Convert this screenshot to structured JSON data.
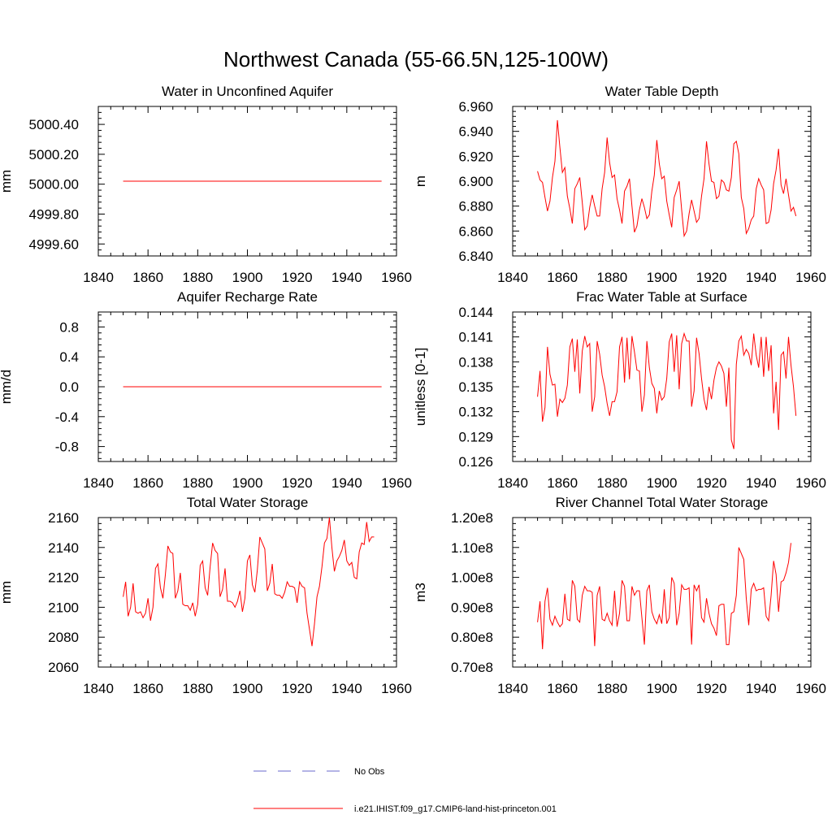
{
  "figure": {
    "title": "Northwest Canada (55-66.5N,125-100W)"
  },
  "legend": {
    "items": [
      {
        "label": "No Obs",
        "color": "#6a6acd",
        "style": "dashed"
      },
      {
        "label": "i.e21.IHIST.f09_g17.CMIP6-land-hist-princeton.001",
        "color": "#ff0000",
        "style": "solid"
      }
    ]
  },
  "chart_data": [
    {
      "type": "line",
      "title": "Water in Unconfined Aquifer",
      "ylabel": "mm",
      "xlabel": "",
      "xlim": [
        1840,
        1960
      ],
      "ylim": [
        4999.52,
        5000.52
      ],
      "xticks": [
        "1840",
        "1860",
        "1880",
        "1900",
        "1920",
        "1940",
        "1960"
      ],
      "yticks": [
        4999.6,
        4999.8,
        5000.0,
        5000.2,
        5000.4
      ],
      "ytick_labels": [
        "4999.60",
        "4999.80",
        "5000.00",
        "5000.20",
        "5000.40"
      ],
      "x_start": 1850,
      "x_step": 1,
      "series": [
        {
          "color": "#ff0000",
          "values": [
            5000.02,
            5000.02,
            5000.02,
            5000.02,
            5000.02,
            5000.02,
            5000.02,
            5000.02,
            5000.02,
            5000.02,
            5000.02,
            5000.02,
            5000.02,
            5000.02,
            5000.02,
            5000.02,
            5000.02,
            5000.02,
            5000.02,
            5000.02,
            5000.02,
            5000.02,
            5000.02,
            5000.02,
            5000.02,
            5000.02,
            5000.02,
            5000.02,
            5000.02,
            5000.02,
            5000.02,
            5000.02,
            5000.02,
            5000.02,
            5000.02,
            5000.02,
            5000.02,
            5000.02,
            5000.02,
            5000.02,
            5000.02,
            5000.02,
            5000.02,
            5000.02,
            5000.02,
            5000.02,
            5000.02,
            5000.02,
            5000.02,
            5000.02,
            5000.02,
            5000.02,
            5000.02,
            5000.02,
            5000.02,
            5000.02,
            5000.02,
            5000.02,
            5000.02,
            5000.02,
            5000.02,
            5000.02,
            5000.02,
            5000.02,
            5000.02,
            5000.02,
            5000.02,
            5000.02,
            5000.02,
            5000.02,
            5000.02,
            5000.02,
            5000.02,
            5000.02,
            5000.02,
            5000.02,
            5000.02,
            5000.02,
            5000.02,
            5000.02,
            5000.02,
            5000.02,
            5000.02,
            5000.02,
            5000.02,
            5000.02,
            5000.02,
            5000.02,
            5000.02,
            5000.02,
            5000.02,
            5000.02,
            5000.02,
            5000.02,
            5000.02,
            5000.02,
            5000.02,
            5000.02,
            5000.02,
            5000.02,
            5000.02,
            5000.02,
            5000.02,
            5000.02,
            5000.02
          ]
        }
      ]
    },
    {
      "type": "line",
      "title": "Water Table Depth",
      "ylabel": "m",
      "xlabel": "",
      "xlim": [
        1840,
        1960
      ],
      "ylim": [
        6.84,
        6.96
      ],
      "xticks": [
        "1840",
        "1860",
        "1880",
        "1900",
        "1920",
        "1940",
        "1960"
      ],
      "yticks": [
        6.84,
        6.86,
        6.88,
        6.9,
        6.92,
        6.94,
        6.96
      ],
      "ytick_labels": [
        "6.840",
        "6.860",
        "6.880",
        "6.900",
        "6.920",
        "6.940",
        "6.960"
      ],
      "x_start": 1850,
      "x_step": 1,
      "series": [
        {
          "color": "#ff0000",
          "values": [
            6.908,
            6.901,
            6.899,
            6.887,
            6.876,
            6.884,
            6.903,
            6.916,
            6.949,
            6.927,
            6.907,
            6.911,
            6.888,
            6.878,
            6.866,
            6.894,
            6.898,
            6.903,
            6.883,
            6.861,
            6.864,
            6.879,
            6.889,
            6.88,
            6.872,
            6.872,
            6.894,
            6.907,
            6.935,
            6.915,
            6.903,
            6.905,
            6.886,
            6.877,
            6.866,
            6.892,
            6.896,
            6.902,
            6.88,
            6.859,
            6.864,
            6.877,
            6.886,
            6.879,
            6.87,
            6.873,
            6.892,
            6.905,
            6.933,
            6.914,
            6.902,
            6.904,
            6.884,
            6.873,
            6.863,
            6.887,
            6.893,
            6.9,
            6.877,
            6.856,
            6.86,
            6.874,
            6.885,
            6.876,
            6.867,
            6.87,
            6.888,
            6.902,
            6.932,
            6.914,
            6.9,
            6.899,
            6.886,
            6.888,
            6.901,
            6.899,
            6.893,
            6.892,
            6.903,
            6.93,
            6.932,
            6.922,
            6.887,
            6.878,
            6.858,
            6.862,
            6.869,
            6.872,
            6.894,
            6.902,
            6.897,
            6.893,
            6.866,
            6.867,
            6.877,
            6.898,
            6.909,
            6.926,
            6.897,
            6.89,
            6.902,
            6.889,
            6.876,
            6.879,
            6.872
          ]
        }
      ]
    },
    {
      "type": "line",
      "title": "Aquifer Recharge Rate",
      "ylabel": "mm/d",
      "xlabel": "",
      "xlim": [
        1840,
        1960
      ],
      "ylim": [
        -1.0,
        1.0
      ],
      "xticks": [
        "1840",
        "1860",
        "1880",
        "1900",
        "1920",
        "1940",
        "1960"
      ],
      "yticks": [
        -0.8,
        -0.4,
        0.0,
        0.4,
        0.8
      ],
      "ytick_labels": [
        "-0.8",
        "-0.4",
        "0.0",
        "0.4",
        "0.8"
      ],
      "x_start": 1850,
      "x_step": 1,
      "series": [
        {
          "color": "#ff0000",
          "values": [
            0,
            0,
            0,
            0,
            0,
            0,
            0,
            0,
            0,
            0,
            0,
            0,
            0,
            0,
            0,
            0,
            0,
            0,
            0,
            0,
            0,
            0,
            0,
            0,
            0,
            0,
            0,
            0,
            0,
            0,
            0,
            0,
            0,
            0,
            0,
            0,
            0,
            0,
            0,
            0,
            0,
            0,
            0,
            0,
            0,
            0,
            0,
            0,
            0,
            0,
            0,
            0,
            0,
            0,
            0,
            0,
            0,
            0,
            0,
            0,
            0,
            0,
            0,
            0,
            0,
            0,
            0,
            0,
            0,
            0,
            0,
            0,
            0,
            0,
            0,
            0,
            0,
            0,
            0,
            0,
            0,
            0,
            0,
            0,
            0,
            0,
            0,
            0,
            0,
            0,
            0,
            0,
            0,
            0,
            0,
            0,
            0,
            0,
            0,
            0,
            0,
            0,
            0,
            0,
            0
          ]
        }
      ]
    },
    {
      "type": "line",
      "title": "Frac Water Table at Surface",
      "ylabel": "unitless [0-1]",
      "xlabel": "",
      "xlim": [
        1840,
        1960
      ],
      "ylim": [
        0.126,
        0.144
      ],
      "xticks": [
        "1840",
        "1860",
        "1880",
        "1900",
        "1920",
        "1940",
        "1960"
      ],
      "yticks": [
        0.126,
        0.129,
        0.132,
        0.135,
        0.138,
        0.141,
        0.144
      ],
      "ytick_labels": [
        "0.126",
        "0.129",
        "0.132",
        "0.135",
        "0.138",
        "0.141",
        "0.144"
      ],
      "x_start": 1850,
      "x_step": 1,
      "series": [
        {
          "color": "#ff0000",
          "values": [
            0.1338,
            0.1369,
            0.1308,
            0.1325,
            0.1398,
            0.1365,
            0.1352,
            0.1353,
            0.1314,
            0.1335,
            0.1331,
            0.1336,
            0.1352,
            0.1398,
            0.1408,
            0.1368,
            0.1407,
            0.1342,
            0.1393,
            0.1411,
            0.1398,
            0.1402,
            0.132,
            0.1338,
            0.1405,
            0.1389,
            0.1364,
            0.135,
            0.133,
            0.1315,
            0.1332,
            0.1332,
            0.1344,
            0.1398,
            0.141,
            0.1355,
            0.1409,
            0.1359,
            0.1411,
            0.1392,
            0.137,
            0.1369,
            0.132,
            0.134,
            0.1405,
            0.1373,
            0.1354,
            0.1348,
            0.1318,
            0.1345,
            0.1334,
            0.1338,
            0.136,
            0.1404,
            0.1414,
            0.1368,
            0.1412,
            0.1347,
            0.1402,
            0.1414,
            0.1405,
            0.1405,
            0.1326,
            0.1345,
            0.1409,
            0.139,
            0.136,
            0.1335,
            0.1322,
            0.135,
            0.1335,
            0.1358,
            0.1373,
            0.138,
            0.1375,
            0.1366,
            0.1326,
            0.1373,
            0.1286,
            0.1275,
            0.1377,
            0.1405,
            0.1411,
            0.1388,
            0.1395,
            0.139,
            0.1376,
            0.1414,
            0.1388,
            0.1373,
            0.141,
            0.1362,
            0.141,
            0.1369,
            0.14,
            0.1318,
            0.1356,
            0.1298,
            0.1388,
            0.1392,
            0.136,
            0.141,
            0.1376,
            0.135,
            0.1315
          ]
        }
      ]
    },
    {
      "type": "line",
      "title": "Total Water Storage",
      "ylabel": "mm",
      "xlabel": "",
      "xlim": [
        1840,
        1960
      ],
      "ylim": [
        2060,
        2160
      ],
      "xticks": [
        "1840",
        "1860",
        "1880",
        "1900",
        "1920",
        "1940",
        "1960"
      ],
      "yticks": [
        2060,
        2080,
        2100,
        2120,
        2140,
        2160
      ],
      "ytick_labels": [
        "2060",
        "2080",
        "2100",
        "2120",
        "2140",
        "2160"
      ],
      "x_start": 1850,
      "x_step": 1,
      "series": [
        {
          "color": "#ff0000",
          "values": [
            2107,
            2117,
            2094,
            2100,
            2116,
            2097,
            2096,
            2097,
            2093,
            2096,
            2106,
            2091,
            2100,
            2126,
            2129,
            2113,
            2106,
            2122,
            2141,
            2137,
            2136,
            2106,
            2111,
            2123,
            2102,
            2101,
            2101,
            2098,
            2103,
            2094,
            2102,
            2128,
            2131,
            2113,
            2108,
            2127,
            2143,
            2138,
            2136,
            2107,
            2112,
            2126,
            2104,
            2104,
            2103,
            2100,
            2104,
            2111,
            2097,
            2106,
            2131,
            2135,
            2115,
            2110,
            2125,
            2147,
            2143,
            2139,
            2111,
            2116,
            2129,
            2109,
            2108,
            2108,
            2106,
            2110,
            2117,
            2114,
            2114,
            2113,
            2103,
            2117,
            2114,
            2113,
            2096,
            2085,
            2074,
            2089,
            2107,
            2114,
            2127,
            2143,
            2146,
            2160,
            2140,
            2124,
            2131,
            2134,
            2138,
            2145,
            2131,
            2128,
            2130,
            2120,
            2119,
            2137,
            2143,
            2142,
            2157,
            2144,
            2147,
            2147
          ]
        }
      ]
    },
    {
      "type": "line",
      "title": "River Channel Total Water Storage",
      "ylabel": "m3",
      "xlabel": "",
      "xlim": [
        1840,
        1960
      ],
      "ylim": [
        70000000,
        120000000
      ],
      "xticks": [
        "1840",
        "1860",
        "1880",
        "1900",
        "1920",
        "1940",
        "1960"
      ],
      "yticks": [
        70000000,
        80000000,
        90000000,
        100000000,
        110000000,
        120000000
      ],
      "ytick_labels": [
        "0.70e8",
        "0.80e8",
        "0.90e8",
        "1.00e8",
        "1.10e8",
        "1.20e8"
      ],
      "x_start": 1850,
      "x_step": 1,
      "series": [
        {
          "color": "#ff0000",
          "values": [
            85000000,
            92000000,
            76000000,
            92000000,
            96500000,
            86000000,
            84000000,
            87000000,
            85000000,
            83500000,
            84500000,
            94500000,
            86000000,
            85500000,
            99000000,
            97000000,
            86000000,
            85000000,
            94000000,
            97000000,
            95500000,
            95500000,
            95000000,
            77000000,
            94000000,
            97000000,
            86000000,
            85500000,
            88000000,
            85500000,
            84000000,
            95500000,
            83500000,
            88000000,
            99000000,
            97000000,
            85500000,
            85500000,
            97000000,
            94000000,
            95500000,
            95500000,
            86500000,
            77500000,
            95500000,
            97500000,
            88500000,
            86000000,
            84500000,
            87500000,
            84500000,
            96000000,
            84500000,
            86500000,
            100000000,
            98000000,
            84000000,
            88000000,
            97500000,
            96000000,
            96000000,
            96500000,
            77500000,
            97500000,
            95500000,
            97500000,
            86500000,
            85000000,
            93000000,
            88000000,
            84500000,
            83000000,
            80500000,
            90500000,
            91000000,
            91000000,
            77500000,
            77500000,
            88000000,
            88500000,
            94000000,
            110000000,
            108000000,
            106000000,
            93000000,
            84000000,
            96000000,
            98000000,
            95500000,
            96000000,
            96000000,
            96500000,
            87000000,
            85500000,
            94000000,
            105500000,
            101000000,
            88500000,
            98500000,
            99000000,
            101500000,
            105000000,
            111500000
          ]
        }
      ]
    }
  ]
}
